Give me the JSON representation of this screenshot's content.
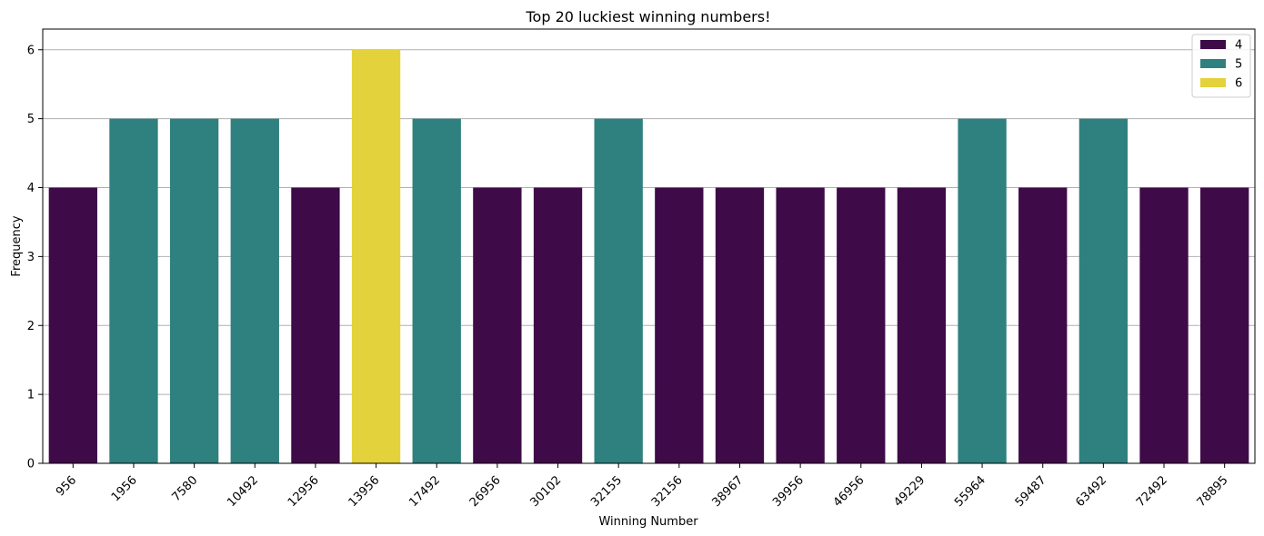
{
  "chart_data": {
    "type": "bar",
    "title": "Top 20 luckiest winning numbers!",
    "xlabel": "Winning Number",
    "ylabel": "Frequency",
    "categories": [
      "956",
      "1956",
      "7580",
      "10492",
      "12956",
      "13956",
      "17492",
      "26956",
      "30102",
      "32155",
      "32156",
      "38967",
      "39956",
      "46956",
      "49229",
      "55964",
      "59487",
      "63492",
      "72492",
      "78895"
    ],
    "values": [
      4,
      5,
      5,
      5,
      4,
      6,
      5,
      4,
      4,
      5,
      4,
      4,
      4,
      4,
      4,
      5,
      4,
      5,
      4,
      4
    ],
    "ylim": [
      0,
      6.3
    ],
    "yticks": [
      0,
      1,
      2,
      3,
      4,
      5,
      6
    ],
    "grid": "y",
    "legend": {
      "position": "top-right",
      "entries": [
        {
          "label": "4",
          "color": "#3e0a48"
        },
        {
          "label": "5",
          "color": "#2e817e"
        },
        {
          "label": "6",
          "color": "#e3d23b"
        }
      ]
    },
    "colors": {
      "4": "#3e0a48",
      "5": "#2e817e",
      "6": "#e3d23b"
    }
  }
}
